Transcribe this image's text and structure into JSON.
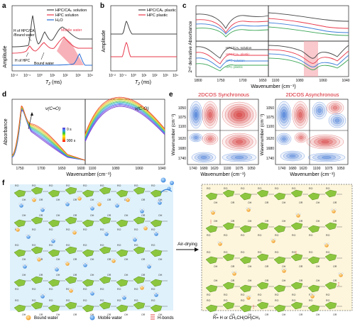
{
  "panels": {
    "a": {
      "letter": "a",
      "ylabel": "Amplitude",
      "xlabel_main": "T",
      "xlabel_sub": "2",
      "xlabel_unit": " (ms)",
      "xticks": [
        "10⁻²",
        "10⁻¹",
        "10⁰",
        "10¹",
        "10²",
        "10³",
        "10⁴"
      ],
      "legend": [
        "HPC/CAₖ solution",
        "HPC solution",
        "H₂O"
      ],
      "ann_hpcca_bound_1": "H of HPC/CA",
      "ann_hpcca_bound_2": "/Bound water",
      "ann_hpc": "H of HPC",
      "ann_bound": "Bound water",
      "ann_mobile": "Mobile water"
    },
    "b": {
      "letter": "b",
      "ylabel": "Amplitude",
      "xlabel_main": "T",
      "xlabel_sub": "2",
      "xlabel_unit": " (ms)",
      "xticks": [
        "10⁻²",
        "10⁻¹",
        "10⁰",
        "10¹",
        "10²",
        "10³",
        "10⁴"
      ],
      "legend": [
        "HPC/CAₖ plastic",
        "HPC plastic"
      ]
    },
    "c": {
      "letter": "c",
      "ylabel": "2ⁿᵈ derivative Absorbance",
      "xlabel": "Wavenumber (cm⁻¹)",
      "xticks_left": [
        "1800",
        "1750",
        "1700",
        "1650"
      ],
      "xticks_right": [
        "1100",
        "1080",
        "1060",
        "1040"
      ],
      "legend": [
        "HPC/CAₖ solution",
        "HPC/CAₖ plastic",
        "HPC solution",
        "HPC plastic"
      ]
    },
    "d": {
      "letter": "d",
      "ylabel": "Absorbance",
      "xlabel": "Wavenumber (cm⁻¹)",
      "xticks_left": [
        "1750",
        "1700",
        "1650",
        "1600"
      ],
      "xticks_right": [
        "1100",
        "1080",
        "1060",
        "1040"
      ],
      "label_left": "ν(C=O)",
      "label_right": "ν(C-O)",
      "time_start": "0 s",
      "time_end": "900 s"
    },
    "e": {
      "letter": "e",
      "title_sync": "2DCOS Synchronous",
      "title_async": "2DCOS Asynchronous",
      "ylabel": "Wavenumber (cm⁻¹)",
      "xlabel": "Wavenumber (cm⁻¹)",
      "yticks": [
        "1050",
        "1075",
        "1100",
        "1620",
        "1680",
        "1740"
      ],
      "xticks": [
        "1740",
        "1680",
        "1620",
        "1100",
        "1075",
        "1050"
      ]
    },
    "f": {
      "letter": "f",
      "arrow_label": "Air-drying",
      "legend_bound": "Bound water",
      "legend_mobile": "Mobile water",
      "legend_hbond": "H-bonds",
      "legend_r": "R= H or CH₂CH(OH)CH₃",
      "ro": "RO",
      "or": "OR",
      "oh": "OH",
      "o": "O"
    }
  },
  "colors": {
    "hpcca": "#444444",
    "hpc": "#e8394b",
    "water": "#2a6fd6",
    "mobile_band": "#f5a5ab",
    "ftir_green": "#3aa655",
    "ftir_blue": "#3b7dd8",
    "sugar": "#8cc63f",
    "sugar_dark": "#5a8f1f",
    "bound_water": "#f5a623",
    "mobile_water": "#2f7fd9",
    "hbond": "#e03030",
    "bg_left": "#dff1fb",
    "bg_right": "#fdf6dc",
    "title_red": "#d6202a"
  }
}
